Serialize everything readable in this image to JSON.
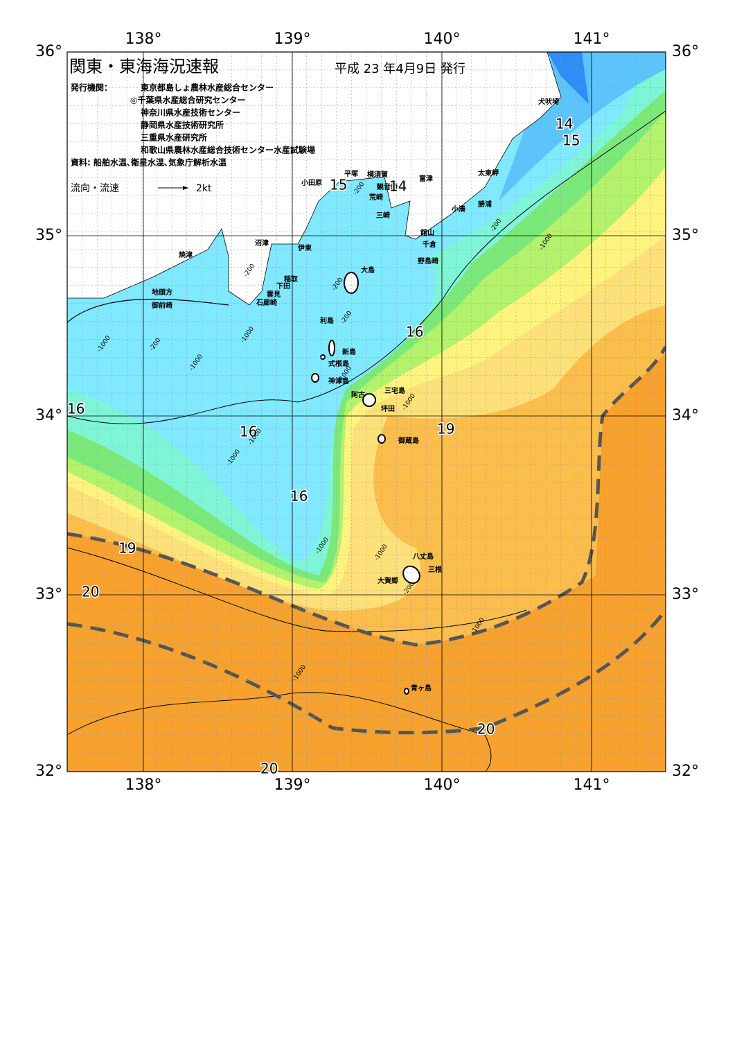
{
  "header": {
    "title": "関東・東海海況速報",
    "issue_date": "平成 23 年4月9日 発行"
  },
  "issuers": {
    "label": "発行機関：",
    "list": [
      "東京都島しょ農林水産総合センター",
      "◎千葉県水産総合研究センター",
      "神奈川県水産技術センター",
      "静岡県水産技術研究所",
      "三重県水産研究所",
      "和歌山県農林水産総合技術センター水産試験場"
    ]
  },
  "source": "資料: 船舶水温､衛星水温､気象庁解析水温",
  "legend": {
    "label": "流向・流速",
    "scale": "2kt"
  },
  "axes": {
    "longitude": [
      "138°",
      "139°",
      "140°",
      "141°"
    ],
    "latitude": [
      "36°",
      "35°",
      "34°",
      "33°",
      "32°"
    ]
  },
  "places": [
    "犬吠埼",
    "太東岬",
    "勝浦",
    "小湊",
    "館山",
    "千倉",
    "野島崎",
    "富津",
    "横須賀",
    "観音崎",
    "平塚",
    "小田原",
    "荒崎",
    "三崎",
    "沼津",
    "伊東",
    "焼津",
    "大島",
    "稲取",
    "下田",
    "雲見",
    "石廊崎",
    "地頭方",
    "御前崎",
    "利島",
    "新島",
    "式根島",
    "神津島",
    "三宅島",
    "阿古",
    "坪田",
    "御蔵島",
    "八丈島",
    "三根",
    "大賀郷",
    "青ヶ島"
  ],
  "isotherm_labels": [
    "14",
    "15",
    "15",
    "14",
    "16",
    "16",
    "16",
    "19",
    "16",
    "19",
    "20",
    "20",
    "20"
  ],
  "depth_labels": [
    "-200",
    "-200",
    "-200",
    "-200",
    "-200",
    "-200",
    "-200",
    "-1000",
    "-1000",
    "-1000",
    "-1000",
    "-1000",
    "-1000",
    "-1000",
    "-1000",
    "-1000",
    "-1000",
    "-1000",
    "-1000"
  ]
}
